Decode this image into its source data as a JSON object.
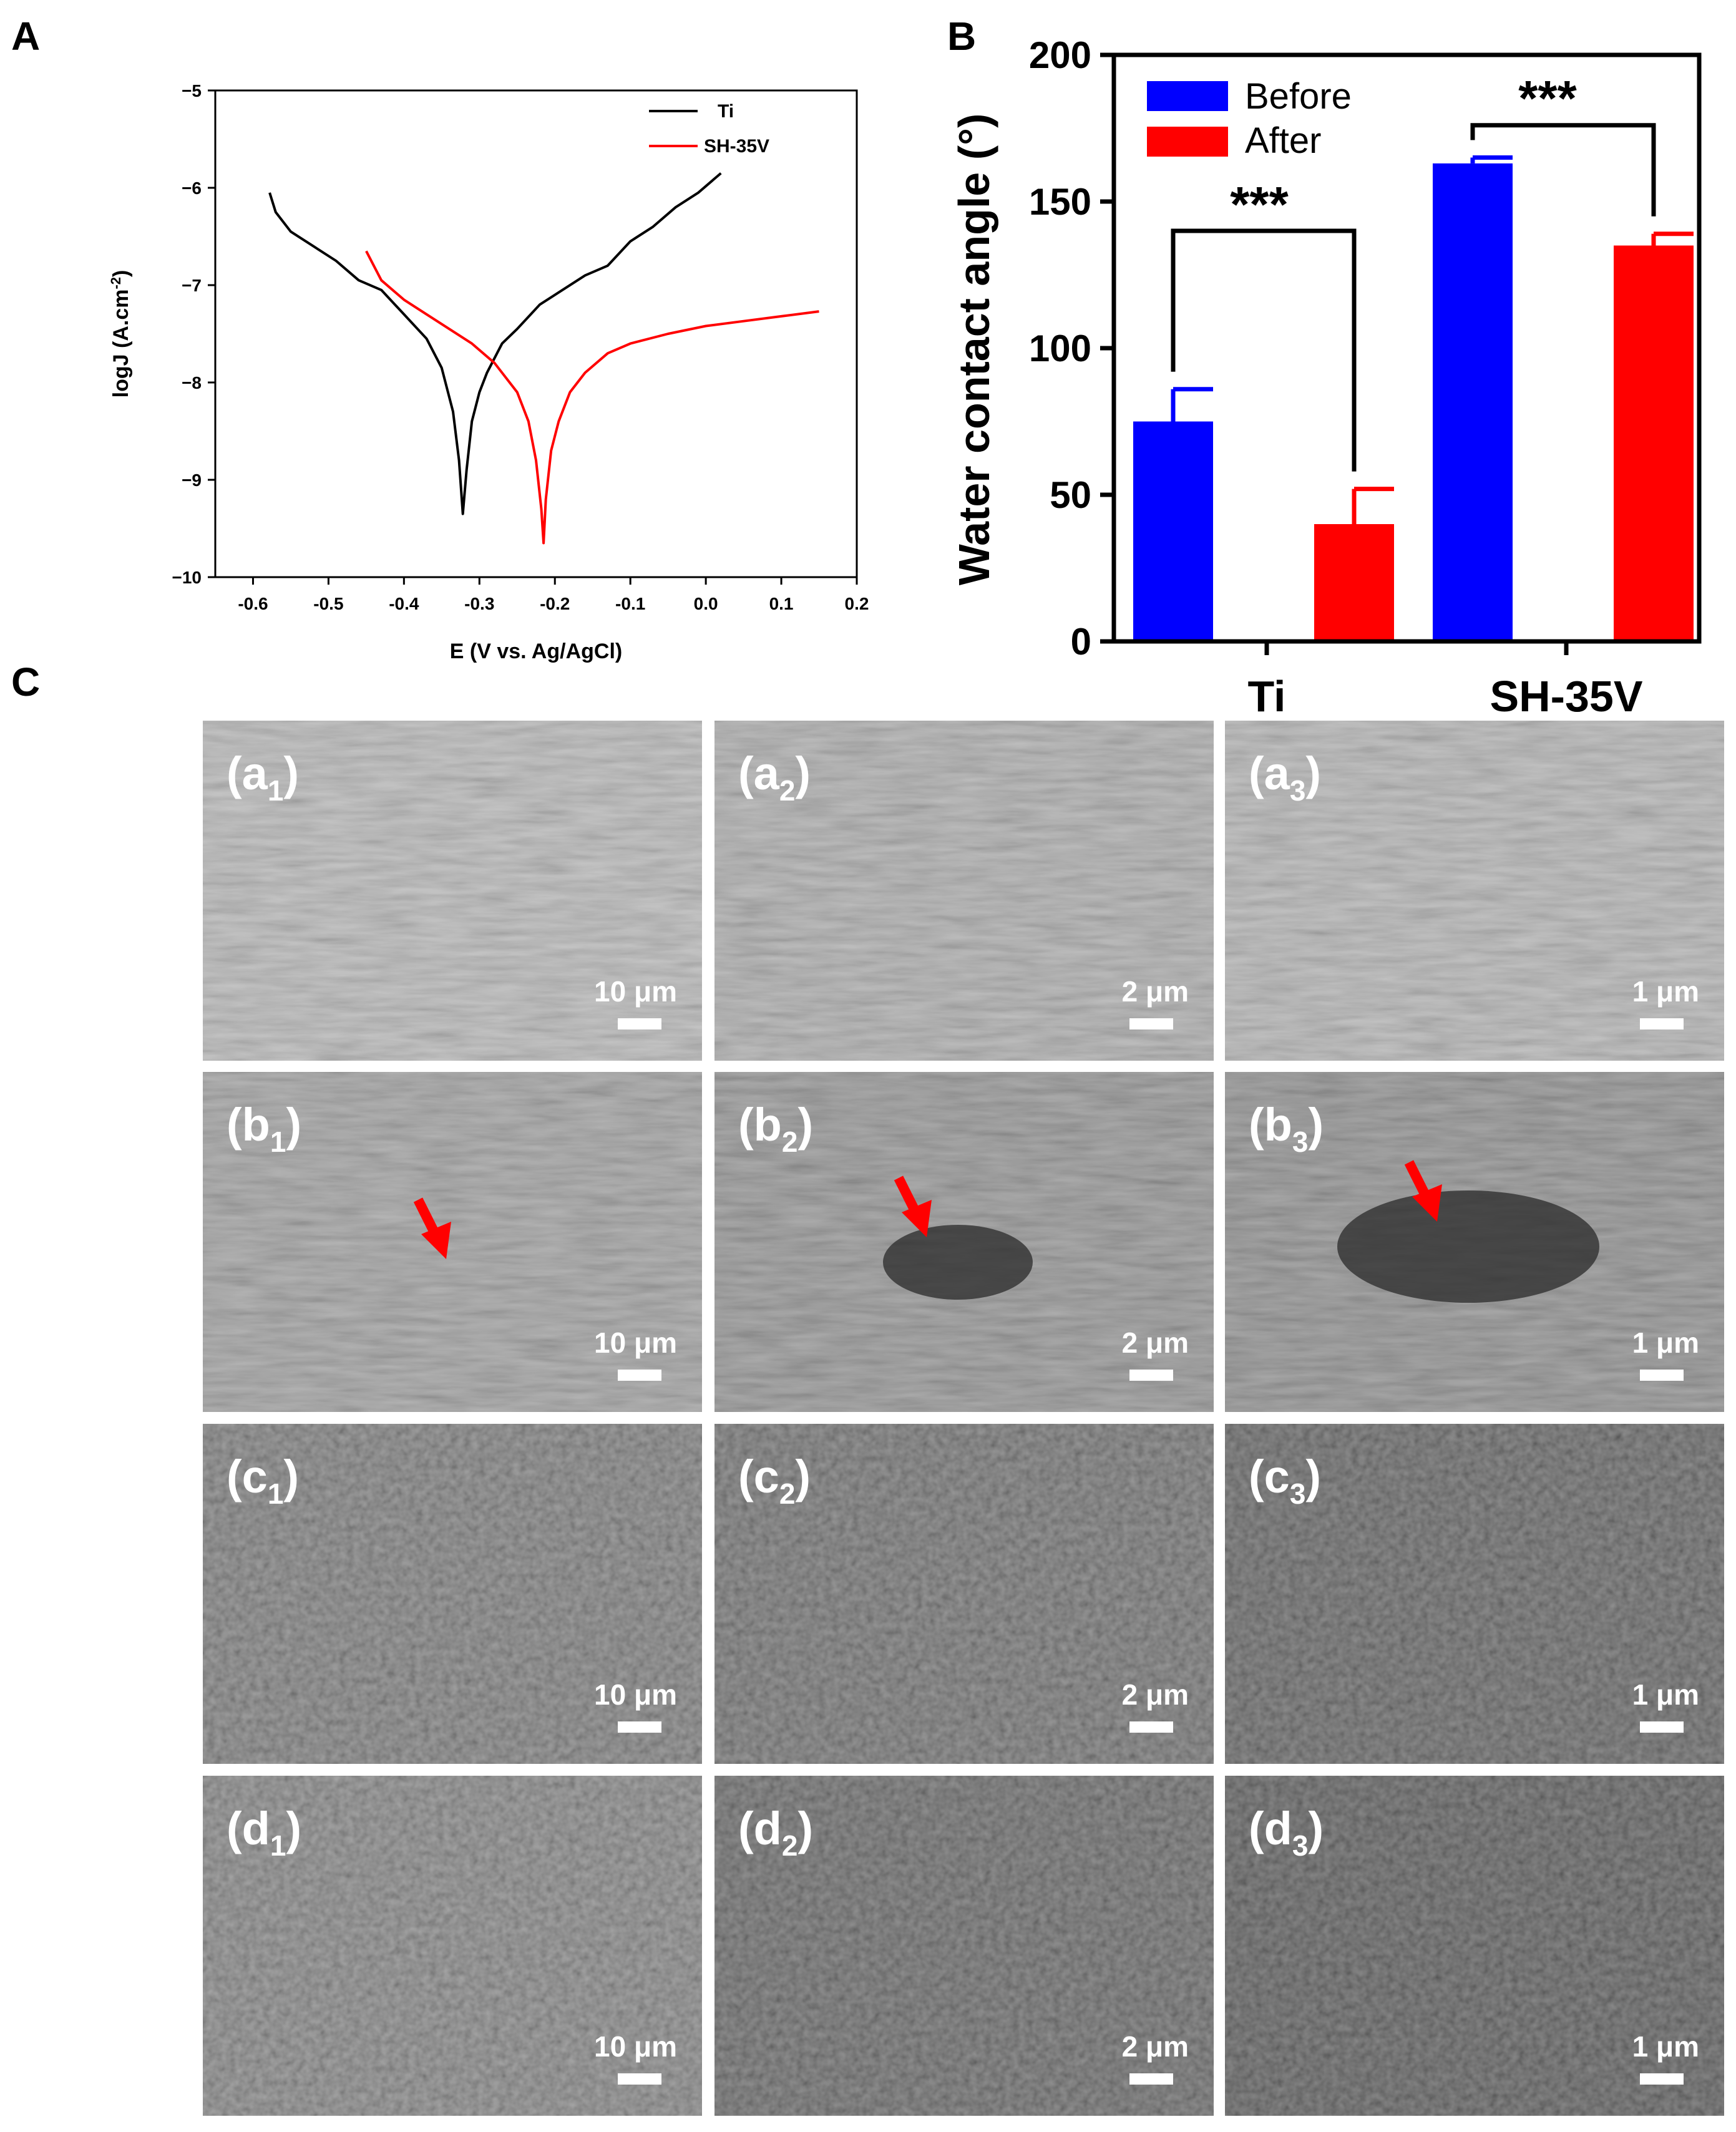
{
  "panel_labels": {
    "a": "A",
    "b": "B",
    "c": "C"
  },
  "chart_data": [
    {
      "type": "line",
      "panel": "A",
      "title": "",
      "xlabel": "E (V vs. Ag/AgCl)",
      "ylabel_main": "logJ (A.cm",
      "ylabel_sup": "-2",
      "ylabel_close": ")",
      "xlim": [
        -0.65,
        0.2
      ],
      "ylim": [
        -10,
        -5
      ],
      "xticks": [
        -0.6,
        -0.5,
        -0.4,
        -0.3,
        -0.2,
        -0.1,
        0.0,
        0.1,
        0.2
      ],
      "xtick_labels": [
        "-0.6",
        "-0.5",
        "-0.4",
        "-0.3",
        "-0.2",
        "-0.1",
        "0.0",
        "0.1",
        "0.2"
      ],
      "yticks": [
        -10,
        -9,
        -8,
        -7,
        -6,
        -5
      ],
      "ytick_labels": [
        "−10",
        "−9",
        "−8",
        "−7",
        "−6",
        "−5"
      ],
      "legend_position": "top-right",
      "colors": {
        "Ti": "#000000",
        "SH-35V": "#ff0000"
      },
      "series": [
        {
          "name": "Ti",
          "x": [
            -0.578,
            -0.57,
            -0.55,
            -0.52,
            -0.49,
            -0.46,
            -0.43,
            -0.4,
            -0.37,
            -0.35,
            -0.335,
            -0.327,
            -0.322,
            -0.317,
            -0.31,
            -0.3,
            -0.29,
            -0.27,
            -0.25,
            -0.22,
            -0.19,
            -0.16,
            -0.13,
            -0.1,
            -0.07,
            -0.04,
            -0.01,
            0.02
          ],
          "y": [
            -6.05,
            -6.25,
            -6.45,
            -6.6,
            -6.75,
            -6.95,
            -7.05,
            -7.3,
            -7.55,
            -7.85,
            -8.3,
            -8.8,
            -9.35,
            -8.9,
            -8.4,
            -8.1,
            -7.9,
            -7.6,
            -7.45,
            -7.2,
            -7.05,
            -6.9,
            -6.8,
            -6.55,
            -6.4,
            -6.2,
            -6.05,
            -5.85
          ]
        },
        {
          "name": "SH-35V",
          "x": [
            -0.45,
            -0.43,
            -0.4,
            -0.37,
            -0.34,
            -0.31,
            -0.28,
            -0.25,
            -0.235,
            -0.225,
            -0.218,
            -0.215,
            -0.212,
            -0.205,
            -0.195,
            -0.18,
            -0.16,
            -0.13,
            -0.1,
            -0.05,
            0.0,
            0.05,
            0.1,
            0.15
          ],
          "y": [
            -6.65,
            -6.95,
            -7.15,
            -7.3,
            -7.45,
            -7.6,
            -7.8,
            -8.1,
            -8.4,
            -8.8,
            -9.3,
            -9.65,
            -9.2,
            -8.7,
            -8.4,
            -8.1,
            -7.9,
            -7.7,
            -7.6,
            -7.5,
            -7.42,
            -7.37,
            -7.32,
            -7.27
          ]
        }
      ]
    },
    {
      "type": "bar",
      "panel": "B",
      "title": "",
      "xlabel": "",
      "ylabel": "Water contact angle (°)",
      "ylim": [
        0,
        200
      ],
      "yticks": [
        0,
        50,
        100,
        150,
        200
      ],
      "ytick_labels": [
        "0",
        "50",
        "100",
        "150",
        "200"
      ],
      "categories": [
        "Ti",
        "SH-35V"
      ],
      "legend_position": "top-left",
      "series": [
        {
          "name": "Before",
          "color": "#0000ff",
          "values": [
            75,
            163
          ],
          "errors": [
            11,
            2
          ]
        },
        {
          "name": "After",
          "color": "#ff0000",
          "values": [
            40,
            135
          ],
          "errors": [
            12,
            4
          ]
        }
      ],
      "significance": [
        "***",
        "***"
      ]
    }
  ],
  "sem_grid": {
    "panel_label": "C",
    "rows": [
      {
        "letter": "a",
        "cells": [
          {
            "sub": "1",
            "scale": "10 μm"
          },
          {
            "sub": "2",
            "scale": "2 μm"
          },
          {
            "sub": "3",
            "scale": "1 μm"
          }
        ]
      },
      {
        "letter": "b",
        "cells": [
          {
            "sub": "1",
            "scale": "10 μm"
          },
          {
            "sub": "2",
            "scale": "2 μm"
          },
          {
            "sub": "3",
            "scale": "1 μm"
          }
        ]
      },
      {
        "letter": "c",
        "cells": [
          {
            "sub": "1",
            "scale": "10 μm"
          },
          {
            "sub": "2",
            "scale": "2 μm"
          },
          {
            "sub": "3",
            "scale": "1 μm"
          }
        ]
      },
      {
        "letter": "d",
        "cells": [
          {
            "sub": "1",
            "scale": "10 μm"
          },
          {
            "sub": "2",
            "scale": "2 μm"
          },
          {
            "sub": "3",
            "scale": "1 μm"
          }
        ]
      }
    ]
  }
}
